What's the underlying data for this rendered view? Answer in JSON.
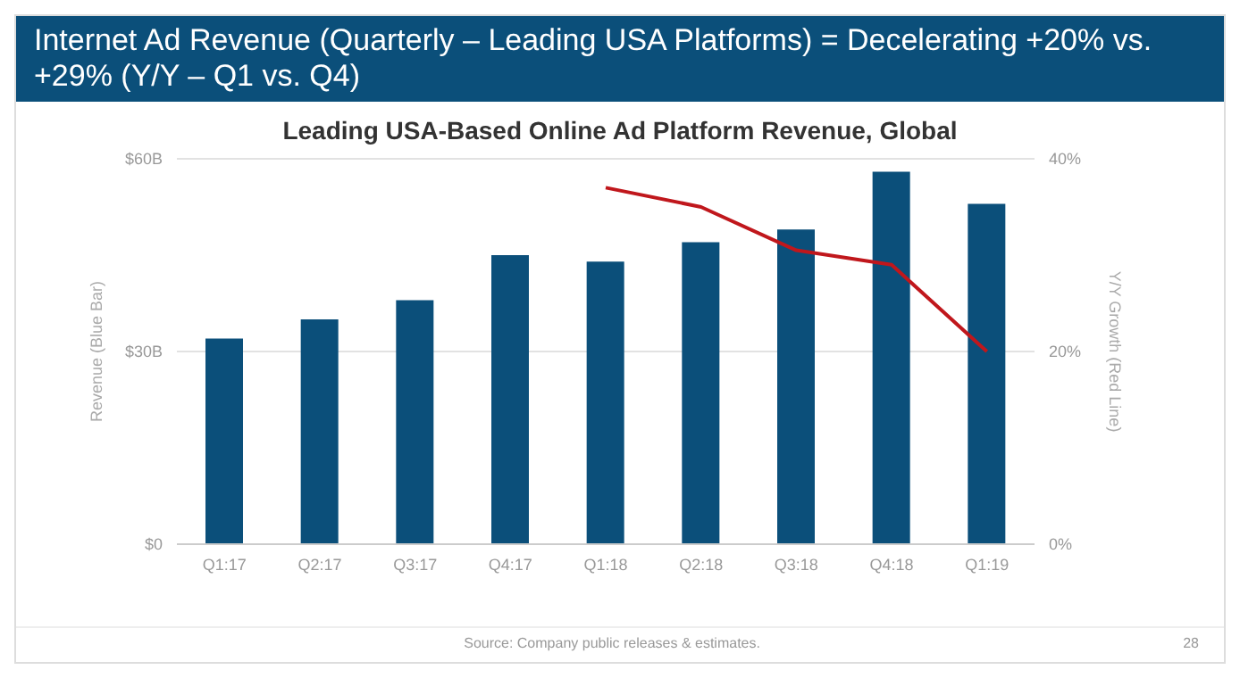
{
  "chart_data": {
    "type": "bar",
    "title": "Internet Ad Revenue (Quarterly – Leading USA Platforms) = Decelerating +20% vs. +29% (Y/Y – Q1 vs. Q4)",
    "subtitle": "Leading USA-Based Online Ad Platform Revenue, Global",
    "ylabel": "Revenue (Blue Bar)",
    "y2label": "Y/Y Growth (Red Line)",
    "categories": [
      "Q1:17",
      "Q2:17",
      "Q3:17",
      "Q4:17",
      "Q1:18",
      "Q2:18",
      "Q3:18",
      "Q4:18",
      "Q1:19"
    ],
    "series": [
      {
        "color": "#0b4f7a",
        "values": [
          32,
          35,
          38,
          45,
          44,
          47,
          49,
          58,
          53
        ]
      },
      {
        "type": "line",
        "axis": "y2",
        "color": "#c0171c",
        "marker": "none",
        "values": [
          null,
          null,
          null,
          null,
          37,
          35,
          30.5,
          29,
          20
        ]
      }
    ],
    "ylim": [
      0,
      60
    ],
    "yticks": [
      {
        "value": 0,
        "label": "$0"
      },
      {
        "value": 30,
        "label": "$30B"
      },
      {
        "value": 60,
        "label": "$60B"
      }
    ],
    "y2lim": [
      0,
      40
    ],
    "y2ticks": [
      {
        "value": 0,
        "label": "0%"
      },
      {
        "value": 20,
        "label": "20%"
      },
      {
        "value": 40,
        "label": "40%"
      }
    ],
    "grid": "y",
    "legend": false,
    "annotations": [
      "Source: Company public releases & estimates.",
      "28"
    ]
  }
}
